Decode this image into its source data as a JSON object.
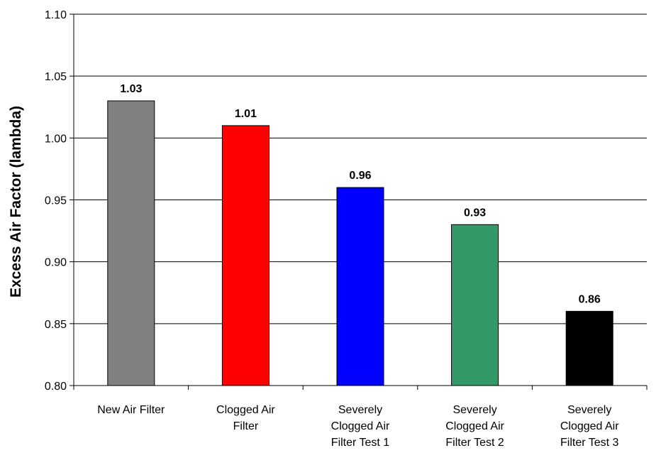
{
  "chart_data": {
    "type": "bar",
    "title": "",
    "xlabel": "",
    "ylabel": "Excess Air Factor (lambda)",
    "ylim": [
      0.8,
      1.1
    ],
    "yticks": [
      "0.80",
      "0.85",
      "0.90",
      "0.95",
      "1.00",
      "1.05",
      "1.10"
    ],
    "grid": true,
    "legend": "none",
    "categories": [
      [
        "New Air Filter"
      ],
      [
        "Clogged Air",
        "Filter"
      ],
      [
        "Severely",
        "Clogged Air",
        "Filter Test 1"
      ],
      [
        "Severely",
        "Clogged Air",
        "Filter Test 2"
      ],
      [
        "Severely",
        "Clogged Air",
        "Filter Test 3"
      ]
    ],
    "values": [
      1.03,
      1.01,
      0.96,
      0.93,
      0.86
    ],
    "value_labels": [
      "1.03",
      "1.01",
      "0.96",
      "0.93",
      "0.86"
    ],
    "colors": [
      "#808080",
      "#ff0000",
      "#0000ff",
      "#339966",
      "#000000"
    ]
  }
}
